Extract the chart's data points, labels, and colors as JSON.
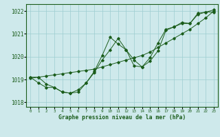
{
  "xlabel": "Graphe pression niveau de la mer (hPa)",
  "xlim": [
    -0.5,
    23.5
  ],
  "ylim": [
    1017.8,
    1022.3
  ],
  "yticks": [
    1018,
    1019,
    1020,
    1021,
    1022
  ],
  "xticks": [
    0,
    1,
    2,
    3,
    4,
    5,
    6,
    7,
    8,
    9,
    10,
    11,
    12,
    13,
    14,
    15,
    16,
    17,
    18,
    19,
    20,
    21,
    22,
    23
  ],
  "background_color": "#cee9eb",
  "grid_color": "#9dcdd0",
  "line_color": "#1a5c1a",
  "text_color": "#1a5c1a",
  "series": [
    [
      1019.1,
      1019.1,
      1018.8,
      1018.65,
      1018.45,
      1018.4,
      1018.45,
      1018.85,
      1019.3,
      1019.85,
      1020.3,
      1020.8,
      1020.3,
      1019.6,
      1019.55,
      1019.8,
      1020.25,
      1021.15,
      1021.3,
      1021.45,
      1021.45,
      1021.85,
      1021.95,
      1021.95
    ],
    [
      1019.1,
      1018.85,
      1018.65,
      1018.65,
      1018.45,
      1018.4,
      1018.55,
      1018.85,
      1019.35,
      1020.05,
      1020.85,
      1020.55,
      1020.3,
      1019.85,
      1019.55,
      1019.95,
      1020.6,
      1021.2,
      1021.3,
      1021.5,
      1021.45,
      1021.9,
      1021.95,
      1022.05
    ],
    [
      1019.05,
      1019.1,
      1019.15,
      1019.2,
      1019.25,
      1019.3,
      1019.35,
      1019.4,
      1019.45,
      1019.55,
      1019.65,
      1019.75,
      1019.85,
      1019.95,
      1020.05,
      1020.2,
      1020.4,
      1020.6,
      1020.8,
      1021.0,
      1021.2,
      1021.45,
      1021.7,
      1022.0
    ]
  ]
}
